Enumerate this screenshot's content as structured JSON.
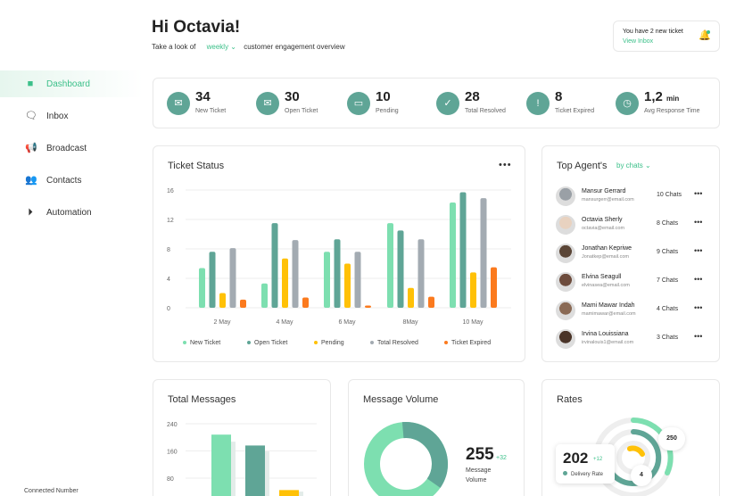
{
  "sidebar": {
    "items": [
      {
        "label": "Dashboard",
        "icon": "grid-icon",
        "active": true
      },
      {
        "label": "Inbox",
        "icon": "chat-bubbles-icon"
      },
      {
        "label": "Broadcast",
        "icon": "megaphone-icon"
      },
      {
        "label": "Contacts",
        "icon": "users-icon"
      },
      {
        "label": "Automation",
        "icon": "play-circle-icon"
      }
    ],
    "footer": "Connected Number"
  },
  "header": {
    "greeting": "Hi Octavia!",
    "subtitle_pre": "Take a look of",
    "period": "weekly",
    "subtitle_post": "customer engagement overview"
  },
  "notification": {
    "text": "You have 2 new ticket",
    "link": "View Inbox",
    "icon": "bell-icon"
  },
  "stats": [
    {
      "value": "34",
      "unit": "",
      "label": "New Ticket",
      "icon": "mail-icon"
    },
    {
      "value": "30",
      "unit": "",
      "label": "Open Ticket",
      "icon": "open-mail-icon"
    },
    {
      "value": "10",
      "unit": "",
      "label": "Pending",
      "icon": "inbox-tray-icon"
    },
    {
      "value": "28",
      "unit": "",
      "label": "Total Resolved",
      "icon": "check-circle-icon"
    },
    {
      "value": "8",
      "unit": "",
      "label": "Ticket Expired",
      "icon": "warning-icon"
    },
    {
      "value": "1,2",
      "unit": "min",
      "label": "Avg Response Time",
      "icon": "clock-icon"
    }
  ],
  "colors": {
    "accent": "#3cc08a",
    "new": "#7ddfb0",
    "open": "#5fa596",
    "pending": "#ffc107",
    "resolved": "#a3abb2",
    "expired": "#fb7a1e"
  },
  "ticket_status": {
    "title": "Ticket Status",
    "menu": "•••"
  },
  "top_agents": {
    "title": "Top Agent's",
    "filter": "by chats",
    "agents": [
      {
        "name": "Mansur Gerrard",
        "email": "mansurgerr@email.com",
        "chats": "10 Chats"
      },
      {
        "name": "Octavia Sherly",
        "email": "octavia@email.com",
        "chats": "8 Chats"
      },
      {
        "name": "Jonathan Kepriwe",
        "email": "Jonatkep@email.com",
        "chats": "9 Chats"
      },
      {
        "name": "Elvina Seagull",
        "email": "elvinasea@email.com",
        "chats": "7 Chats"
      },
      {
        "name": "Mami Mawar Indah",
        "email": "mamimawar@email.com",
        "chats": "4 Chats"
      },
      {
        "name": "Irvina Louissiana",
        "email": "irvinalouis1@email.com",
        "chats": "3 Chats"
      }
    ]
  },
  "total_messages": {
    "title": "Total Messages"
  },
  "message_volume": {
    "title": "Message Volume",
    "value": "255",
    "delta": "+32",
    "label_1": "Message",
    "label_2": "Volume",
    "share_open": 0.36
  },
  "rates": {
    "title": "Rates",
    "value": "202",
    "delta": "+12",
    "label": "Delivery Rate",
    "badge_outer": "250",
    "badge_inner": "4"
  },
  "chart_data": [
    {
      "type": "bar",
      "title": "Ticket Status",
      "categories": [
        "2 May",
        "4 May",
        "6 May",
        "8May",
        "10 May"
      ],
      "ylim": [
        0,
        16
      ],
      "yticks": [
        0,
        4,
        8,
        12,
        16
      ],
      "grid": true,
      "legend": "bottom",
      "series": [
        {
          "name": "New Ticket",
          "values": [
            5.4,
            3.3,
            7.6,
            11.5,
            14.3
          ]
        },
        {
          "name": "Open Ticket",
          "values": [
            7.6,
            11.5,
            9.3,
            10.5,
            15.7
          ]
        },
        {
          "name": "Pending",
          "values": [
            2.0,
            6.7,
            6.0,
            2.7,
            4.8
          ]
        },
        {
          "name": "Total Resolved",
          "values": [
            8.1,
            9.2,
            7.6,
            9.3,
            14.9
          ]
        },
        {
          "name": "Ticket Expired",
          "values": [
            1.1,
            1.4,
            0.3,
            1.5,
            5.5
          ]
        }
      ]
    },
    {
      "type": "bar",
      "title": "Total Messages",
      "yticks": [
        80,
        160,
        240
      ],
      "grid": true,
      "values": [
        208,
        176,
        45
      ]
    }
  ]
}
